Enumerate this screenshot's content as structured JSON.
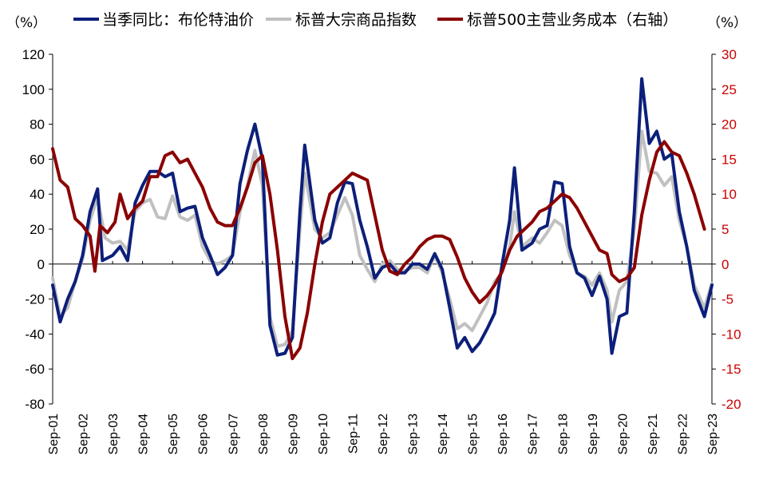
{
  "chart_data": {
    "type": "line",
    "y_left_unit": "（%）",
    "y_right_unit": "（%）",
    "y_left_lim": [
      -80,
      120
    ],
    "y_right_lim": [
      -20,
      30
    ],
    "y_left_ticks": [
      -80,
      -60,
      -40,
      -20,
      0,
      20,
      40,
      60,
      80,
      100,
      120
    ],
    "y_right_ticks": [
      -20,
      -15,
      -10,
      -5,
      0,
      5,
      10,
      15,
      20,
      25,
      30
    ],
    "x_range": [
      2001.67,
      2023.67
    ],
    "x_ticks": [
      "Sep-01",
      "Sep-02",
      "Sep-03",
      "Sep-04",
      "Sep-05",
      "Sep-06",
      "Sep-07",
      "Sep-08",
      "Sep-09",
      "Sep-10",
      "Sep-11",
      "Sep-12",
      "Sep-13",
      "Sep-14",
      "Sep-15",
      "Sep-16",
      "Sep-17",
      "Sep-18",
      "Sep-19",
      "Sep-20",
      "Sep-21",
      "Sep-22",
      "Sep-23"
    ],
    "legend_placement": "top",
    "right_axis_color": "#cc0000",
    "series": [
      {
        "name": "当季同比：布伦特油价",
        "axis": "left",
        "color": "#0c1f7a",
        "points": [
          [
            2001.67,
            -12
          ],
          [
            2001.92,
            -33
          ],
          [
            2002.17,
            -20
          ],
          [
            2002.42,
            -10
          ],
          [
            2002.67,
            5
          ],
          [
            2002.92,
            30
          ],
          [
            2003.17,
            43
          ],
          [
            2003.33,
            2
          ],
          [
            2003.67,
            5
          ],
          [
            2003.92,
            10
          ],
          [
            2004.17,
            2
          ],
          [
            2004.42,
            35
          ],
          [
            2004.67,
            45
          ],
          [
            2004.92,
            53
          ],
          [
            2005.17,
            53
          ],
          [
            2005.42,
            50
          ],
          [
            2005.67,
            52
          ],
          [
            2005.92,
            30
          ],
          [
            2006.17,
            32
          ],
          [
            2006.42,
            33
          ],
          [
            2006.67,
            15
          ],
          [
            2006.92,
            5
          ],
          [
            2007.17,
            -6
          ],
          [
            2007.42,
            -2
          ],
          [
            2007.67,
            5
          ],
          [
            2007.92,
            46
          ],
          [
            2008.17,
            65
          ],
          [
            2008.42,
            80
          ],
          [
            2008.67,
            60
          ],
          [
            2008.92,
            -35
          ],
          [
            2009.17,
            -52
          ],
          [
            2009.42,
            -51
          ],
          [
            2009.67,
            -42
          ],
          [
            2009.92,
            30
          ],
          [
            2010.08,
            68
          ],
          [
            2010.42,
            25
          ],
          [
            2010.67,
            12
          ],
          [
            2010.92,
            15
          ],
          [
            2011.17,
            35
          ],
          [
            2011.42,
            47
          ],
          [
            2011.67,
            46
          ],
          [
            2011.92,
            25
          ],
          [
            2012.17,
            10
          ],
          [
            2012.42,
            -8
          ],
          [
            2012.67,
            -2
          ],
          [
            2012.92,
            0
          ],
          [
            2013.17,
            -5
          ],
          [
            2013.42,
            -5
          ],
          [
            2013.67,
            0
          ],
          [
            2013.92,
            0
          ],
          [
            2014.17,
            -3
          ],
          [
            2014.42,
            6
          ],
          [
            2014.67,
            -3
          ],
          [
            2014.92,
            -25
          ],
          [
            2015.17,
            -48
          ],
          [
            2015.42,
            -42
          ],
          [
            2015.67,
            -50
          ],
          [
            2015.92,
            -45
          ],
          [
            2016.17,
            -37
          ],
          [
            2016.42,
            -28
          ],
          [
            2016.67,
            0
          ],
          [
            2016.92,
            25
          ],
          [
            2017.08,
            55
          ],
          [
            2017.33,
            8
          ],
          [
            2017.67,
            12
          ],
          [
            2017.92,
            20
          ],
          [
            2018.17,
            22
          ],
          [
            2018.42,
            47
          ],
          [
            2018.67,
            46
          ],
          [
            2018.92,
            10
          ],
          [
            2019.17,
            -5
          ],
          [
            2019.42,
            -8
          ],
          [
            2019.67,
            -18
          ],
          [
            2019.92,
            -7
          ],
          [
            2020.17,
            -20
          ],
          [
            2020.33,
            -51
          ],
          [
            2020.58,
            -30
          ],
          [
            2020.83,
            -28
          ],
          [
            2021.08,
            30
          ],
          [
            2021.33,
            106
          ],
          [
            2021.58,
            69
          ],
          [
            2021.83,
            76
          ],
          [
            2022.08,
            60
          ],
          [
            2022.33,
            63
          ],
          [
            2022.58,
            30
          ],
          [
            2022.83,
            10
          ],
          [
            2023.08,
            -15
          ],
          [
            2023.42,
            -30
          ],
          [
            2023.67,
            -12
          ]
        ]
      },
      {
        "name": "标普大宗商品指数",
        "axis": "left",
        "color": "#c0c0c0",
        "points": [
          [
            2001.67,
            -8
          ],
          [
            2001.92,
            -30
          ],
          [
            2002.17,
            -25
          ],
          [
            2002.42,
            -10
          ],
          [
            2002.67,
            3
          ],
          [
            2002.92,
            25
          ],
          [
            2003.17,
            38
          ],
          [
            2003.42,
            15
          ],
          [
            2003.67,
            12
          ],
          [
            2003.92,
            13
          ],
          [
            2004.17,
            8
          ],
          [
            2004.42,
            30
          ],
          [
            2004.67,
            35
          ],
          [
            2004.92,
            37
          ],
          [
            2005.17,
            27
          ],
          [
            2005.42,
            26
          ],
          [
            2005.67,
            39
          ],
          [
            2005.92,
            27
          ],
          [
            2006.17,
            25
          ],
          [
            2006.42,
            28
          ],
          [
            2006.67,
            10
          ],
          [
            2006.92,
            2
          ],
          [
            2007.17,
            0
          ],
          [
            2007.42,
            2
          ],
          [
            2007.67,
            5
          ],
          [
            2007.92,
            30
          ],
          [
            2008.17,
            45
          ],
          [
            2008.42,
            65
          ],
          [
            2008.67,
            45
          ],
          [
            2008.92,
            -30
          ],
          [
            2009.17,
            -47
          ],
          [
            2009.42,
            -46
          ],
          [
            2009.67,
            -38
          ],
          [
            2009.92,
            20
          ],
          [
            2010.08,
            52
          ],
          [
            2010.42,
            20
          ],
          [
            2010.67,
            15
          ],
          [
            2010.92,
            18
          ],
          [
            2011.17,
            28
          ],
          [
            2011.42,
            38
          ],
          [
            2011.67,
            28
          ],
          [
            2011.92,
            5
          ],
          [
            2012.17,
            -3
          ],
          [
            2012.42,
            -10
          ],
          [
            2012.67,
            0
          ],
          [
            2012.92,
            2
          ],
          [
            2013.17,
            -3
          ],
          [
            2013.42,
            -4
          ],
          [
            2013.67,
            -2
          ],
          [
            2013.92,
            -2
          ],
          [
            2014.17,
            -5
          ],
          [
            2014.42,
            5
          ],
          [
            2014.67,
            -5
          ],
          [
            2014.92,
            -20
          ],
          [
            2015.17,
            -37
          ],
          [
            2015.42,
            -34
          ],
          [
            2015.67,
            -38
          ],
          [
            2015.92,
            -30
          ],
          [
            2016.17,
            -22
          ],
          [
            2016.42,
            -10
          ],
          [
            2016.67,
            -5
          ],
          [
            2016.92,
            10
          ],
          [
            2017.08,
            30
          ],
          [
            2017.33,
            10
          ],
          [
            2017.67,
            15
          ],
          [
            2017.92,
            12
          ],
          [
            2018.17,
            18
          ],
          [
            2018.42,
            25
          ],
          [
            2018.67,
            22
          ],
          [
            2018.92,
            5
          ],
          [
            2019.17,
            -5
          ],
          [
            2019.42,
            -7
          ],
          [
            2019.67,
            -12
          ],
          [
            2019.92,
            -5
          ],
          [
            2020.17,
            -15
          ],
          [
            2020.33,
            -33
          ],
          [
            2020.58,
            -15
          ],
          [
            2020.83,
            -10
          ],
          [
            2021.08,
            20
          ],
          [
            2021.33,
            76
          ],
          [
            2021.58,
            53
          ],
          [
            2021.83,
            52
          ],
          [
            2022.08,
            45
          ],
          [
            2022.33,
            50
          ],
          [
            2022.58,
            25
          ],
          [
            2022.83,
            10
          ],
          [
            2023.08,
            -12
          ],
          [
            2023.42,
            -25
          ],
          [
            2023.67,
            -11
          ]
        ]
      },
      {
        "name": "标普500主营业务成本（右轴）",
        "axis": "right",
        "color": "#8b0000",
        "points": [
          [
            2001.67,
            16.5
          ],
          [
            2001.92,
            12
          ],
          [
            2002.17,
            11
          ],
          [
            2002.42,
            6.5
          ],
          [
            2002.67,
            5.5
          ],
          [
            2002.92,
            4
          ],
          [
            2003.08,
            -1
          ],
          [
            2003.25,
            5.5
          ],
          [
            2003.5,
            4.5
          ],
          [
            2003.75,
            6
          ],
          [
            2003.92,
            10
          ],
          [
            2004.17,
            6.5
          ],
          [
            2004.42,
            8
          ],
          [
            2004.67,
            9
          ],
          [
            2004.92,
            12.5
          ],
          [
            2005.17,
            12.5
          ],
          [
            2005.42,
            15.5
          ],
          [
            2005.67,
            16
          ],
          [
            2005.92,
            14.5
          ],
          [
            2006.17,
            15
          ],
          [
            2006.42,
            13
          ],
          [
            2006.67,
            11
          ],
          [
            2006.92,
            8
          ],
          [
            2007.17,
            6
          ],
          [
            2007.42,
            5.5
          ],
          [
            2007.67,
            5.5
          ],
          [
            2007.92,
            8
          ],
          [
            2008.17,
            11
          ],
          [
            2008.42,
            14.5
          ],
          [
            2008.67,
            15.5
          ],
          [
            2008.92,
            10
          ],
          [
            2009.17,
            2
          ],
          [
            2009.42,
            -7.5
          ],
          [
            2009.67,
            -13.5
          ],
          [
            2009.92,
            -12
          ],
          [
            2010.17,
            -7
          ],
          [
            2010.42,
            0
          ],
          [
            2010.67,
            6
          ],
          [
            2010.92,
            10
          ],
          [
            2011.17,
            11
          ],
          [
            2011.42,
            12
          ],
          [
            2011.67,
            13
          ],
          [
            2011.92,
            12.5
          ],
          [
            2012.17,
            12
          ],
          [
            2012.42,
            7
          ],
          [
            2012.67,
            2
          ],
          [
            2012.92,
            -1
          ],
          [
            2013.17,
            -1.5
          ],
          [
            2013.42,
            0
          ],
          [
            2013.67,
            1
          ],
          [
            2013.92,
            2.5
          ],
          [
            2014.17,
            3.5
          ],
          [
            2014.42,
            4
          ],
          [
            2014.67,
            4
          ],
          [
            2014.92,
            3.5
          ],
          [
            2015.17,
            1
          ],
          [
            2015.42,
            -2
          ],
          [
            2015.67,
            -4
          ],
          [
            2015.92,
            -5.5
          ],
          [
            2016.17,
            -4.5
          ],
          [
            2016.42,
            -3
          ],
          [
            2016.67,
            -1
          ],
          [
            2016.92,
            2
          ],
          [
            2017.17,
            4
          ],
          [
            2017.42,
            5
          ],
          [
            2017.67,
            6
          ],
          [
            2017.92,
            7.5
          ],
          [
            2018.17,
            8
          ],
          [
            2018.42,
            9
          ],
          [
            2018.67,
            10
          ],
          [
            2018.92,
            9.5
          ],
          [
            2019.17,
            8
          ],
          [
            2019.42,
            6
          ],
          [
            2019.67,
            4
          ],
          [
            2019.92,
            2
          ],
          [
            2020.17,
            1.5
          ],
          [
            2020.33,
            -1.5
          ],
          [
            2020.58,
            -2.5
          ],
          [
            2020.83,
            -2
          ],
          [
            2021.08,
            -0.5
          ],
          [
            2021.33,
            7
          ],
          [
            2021.58,
            12
          ],
          [
            2021.83,
            16
          ],
          [
            2022.08,
            17.5
          ],
          [
            2022.33,
            16
          ],
          [
            2022.58,
            15.5
          ],
          [
            2022.83,
            13
          ],
          [
            2023.08,
            10
          ],
          [
            2023.42,
            5
          ]
        ]
      }
    ]
  }
}
